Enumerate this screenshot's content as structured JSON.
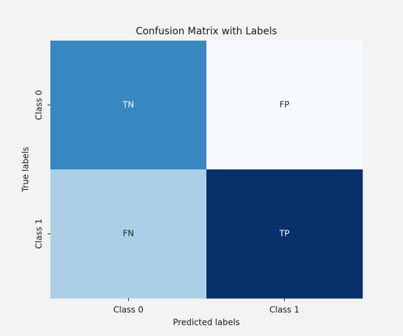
{
  "chart_data": {
    "type": "heatmap",
    "title": "Confusion Matrix with Labels",
    "xlabel": "Predicted labels",
    "ylabel": "True labels",
    "x_categories": [
      "Class 0",
      "Class 1"
    ],
    "y_categories": [
      "Class 0",
      "Class 1"
    ],
    "cells": [
      [
        {
          "label": "TN",
          "color": "#3787c0",
          "text_color": "#ffffff"
        },
        {
          "label": "FP",
          "color": "#f7fbff",
          "text_color": "#262626"
        }
      ],
      [
        {
          "label": "FN",
          "color": "#abd0e6",
          "text_color": "#262626"
        },
        {
          "label": "TP",
          "color": "#08306b",
          "text_color": "#ffffff"
        }
      ]
    ]
  }
}
